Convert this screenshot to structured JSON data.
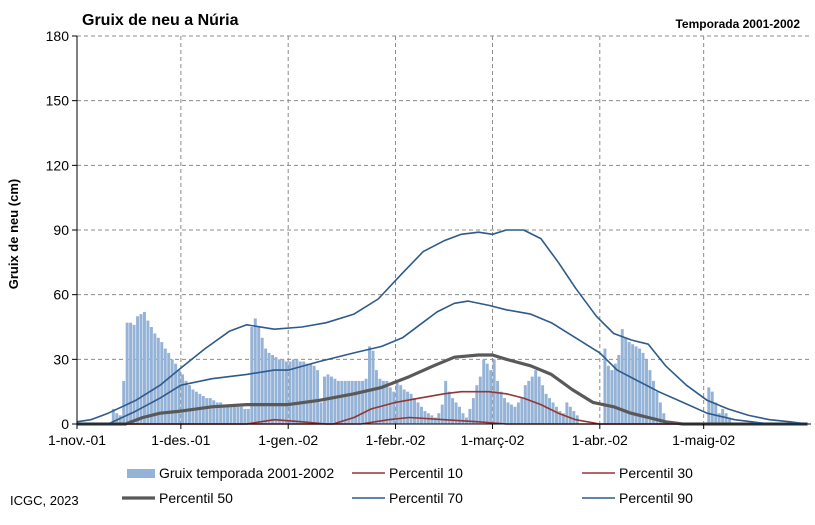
{
  "chart_data": {
    "type": "bar",
    "title": "Gruix de neu a Núria",
    "subtitle": "Temporada 2001-2002",
    "ylabel": "Gruix de neu (cm)",
    "ylim": [
      0,
      180
    ],
    "yticks": [
      0,
      30,
      60,
      90,
      120,
      150,
      180
    ],
    "x_start": "2001-11-01",
    "x_end": "2002-05-31",
    "xticks": [
      {
        "date": "2001-11-01",
        "label": "1-nov.-01"
      },
      {
        "date": "2001-12-01",
        "label": "1-des.-01"
      },
      {
        "date": "2002-01-01",
        "label": "1-gen.-02"
      },
      {
        "date": "2002-02-01",
        "label": "1-febr.-02"
      },
      {
        "date": "2002-03-01",
        "label": "1-març-02"
      },
      {
        "date": "2002-04-01",
        "label": "1-abr.-02"
      },
      {
        "date": "2002-05-01",
        "label": "1-maig-02"
      }
    ],
    "grid": true,
    "legend_position": "bottom",
    "credit": "ICGC, 2023",
    "bar_series": {
      "name": "Gruix temporada 2001-2002",
      "color": "#95b3d7",
      "points": [
        [
          "2001-11-11",
          7
        ],
        [
          "2001-11-12",
          5
        ],
        [
          "2001-11-13",
          4
        ],
        [
          "2001-11-14",
          20
        ],
        [
          "2001-11-15",
          47
        ],
        [
          "2001-11-16",
          47
        ],
        [
          "2001-11-17",
          46
        ],
        [
          "2001-11-18",
          50
        ],
        [
          "2001-11-19",
          51
        ],
        [
          "2001-11-20",
          52
        ],
        [
          "2001-11-21",
          48
        ],
        [
          "2001-11-22",
          45
        ],
        [
          "2001-11-23",
          42
        ],
        [
          "2001-11-24",
          40
        ],
        [
          "2001-11-25",
          38
        ],
        [
          "2001-11-26",
          35
        ],
        [
          "2001-11-27",
          33
        ],
        [
          "2001-11-28",
          30
        ],
        [
          "2001-11-29",
          28
        ],
        [
          "2001-11-30",
          25
        ],
        [
          "2001-12-01",
          23
        ],
        [
          "2001-12-02",
          20
        ],
        [
          "2001-12-03",
          18
        ],
        [
          "2001-12-04",
          16
        ],
        [
          "2001-12-05",
          15
        ],
        [
          "2001-12-06",
          14
        ],
        [
          "2001-12-07",
          13
        ],
        [
          "2001-12-08",
          12
        ],
        [
          "2001-12-09",
          12
        ],
        [
          "2001-12-10",
          11
        ],
        [
          "2001-12-11",
          10
        ],
        [
          "2001-12-12",
          10
        ],
        [
          "2001-12-13",
          9
        ],
        [
          "2001-12-14",
          9
        ],
        [
          "2001-12-15",
          8
        ],
        [
          "2001-12-16",
          8
        ],
        [
          "2001-12-17",
          8
        ],
        [
          "2001-12-18",
          8
        ],
        [
          "2001-12-19",
          7
        ],
        [
          "2001-12-20",
          7
        ],
        [
          "2001-12-21",
          45
        ],
        [
          "2001-12-22",
          49
        ],
        [
          "2001-12-23",
          45
        ],
        [
          "2001-12-24",
          40
        ],
        [
          "2001-12-25",
          35
        ],
        [
          "2001-12-26",
          33
        ],
        [
          "2001-12-27",
          32
        ],
        [
          "2001-12-28",
          31
        ],
        [
          "2001-12-29",
          30
        ],
        [
          "2001-12-30",
          30
        ],
        [
          "2001-12-31",
          29
        ],
        [
          "2002-01-01",
          29
        ],
        [
          "2002-01-02",
          30
        ],
        [
          "2002-01-03",
          30
        ],
        [
          "2002-01-04",
          29
        ],
        [
          "2002-01-05",
          29
        ],
        [
          "2002-01-06",
          28
        ],
        [
          "2002-01-07",
          28
        ],
        [
          "2002-01-08",
          27
        ],
        [
          "2002-01-09",
          25
        ],
        [
          "2002-01-10",
          10
        ],
        [
          "2002-01-11",
          22
        ],
        [
          "2002-01-12",
          23
        ],
        [
          "2002-01-13",
          22
        ],
        [
          "2002-01-14",
          21
        ],
        [
          "2002-01-15",
          20
        ],
        [
          "2002-01-16",
          20
        ],
        [
          "2002-01-17",
          20
        ],
        [
          "2002-01-18",
          20
        ],
        [
          "2002-01-19",
          20
        ],
        [
          "2002-01-20",
          20
        ],
        [
          "2002-01-21",
          20
        ],
        [
          "2002-01-22",
          20
        ],
        [
          "2002-01-23",
          21
        ],
        [
          "2002-01-24",
          36
        ],
        [
          "2002-01-25",
          34
        ],
        [
          "2002-01-26",
          25
        ],
        [
          "2002-01-27",
          21
        ],
        [
          "2002-01-28",
          20
        ],
        [
          "2002-01-29",
          20
        ],
        [
          "2002-01-30",
          17
        ],
        [
          "2002-01-31",
          15
        ],
        [
          "2002-02-01",
          19
        ],
        [
          "2002-02-02",
          18
        ],
        [
          "2002-02-03",
          16
        ],
        [
          "2002-02-04",
          15
        ],
        [
          "2002-02-05",
          14
        ],
        [
          "2002-02-06",
          12
        ],
        [
          "2002-02-07",
          10
        ],
        [
          "2002-02-08",
          8
        ],
        [
          "2002-02-09",
          6
        ],
        [
          "2002-02-10",
          5
        ],
        [
          "2002-02-11",
          4
        ],
        [
          "2002-02-12",
          3
        ],
        [
          "2002-02-13",
          5
        ],
        [
          "2002-02-14",
          9
        ],
        [
          "2002-02-15",
          20
        ],
        [
          "2002-02-16",
          15
        ],
        [
          "2002-02-17",
          12
        ],
        [
          "2002-02-18",
          10
        ],
        [
          "2002-02-19",
          8
        ],
        [
          "2002-02-20",
          5
        ],
        [
          "2002-02-21",
          3
        ],
        [
          "2002-02-22",
          7
        ],
        [
          "2002-02-23",
          12
        ],
        [
          "2002-02-24",
          18
        ],
        [
          "2002-02-25",
          22
        ],
        [
          "2002-02-26",
          30
        ],
        [
          "2002-02-27",
          28
        ],
        [
          "2002-02-28",
          25
        ],
        [
          "2002-03-01",
          30
        ],
        [
          "2002-03-02",
          20
        ],
        [
          "2002-03-03",
          15
        ],
        [
          "2002-03-04",
          12
        ],
        [
          "2002-03-05",
          10
        ],
        [
          "2002-03-06",
          9
        ],
        [
          "2002-03-07",
          8
        ],
        [
          "2002-03-08",
          10
        ],
        [
          "2002-03-09",
          12
        ],
        [
          "2002-03-10",
          18
        ],
        [
          "2002-03-11",
          20
        ],
        [
          "2002-03-12",
          22
        ],
        [
          "2002-03-13",
          25
        ],
        [
          "2002-03-14",
          22
        ],
        [
          "2002-03-15",
          18
        ],
        [
          "2002-03-16",
          14
        ],
        [
          "2002-03-17",
          12
        ],
        [
          "2002-03-18",
          10
        ],
        [
          "2002-03-19",
          8
        ],
        [
          "2002-03-20",
          6
        ],
        [
          "2002-03-21",
          5
        ],
        [
          "2002-03-22",
          10
        ],
        [
          "2002-03-23",
          8
        ],
        [
          "2002-03-24",
          6
        ],
        [
          "2002-03-25",
          4
        ],
        [
          "2002-04-02",
          35
        ],
        [
          "2002-04-03",
          27
        ],
        [
          "2002-04-04",
          25
        ],
        [
          "2002-04-05",
          28
        ],
        [
          "2002-04-06",
          32
        ],
        [
          "2002-04-07",
          44
        ],
        [
          "2002-04-08",
          40
        ],
        [
          "2002-04-09",
          38
        ],
        [
          "2002-04-10",
          37
        ],
        [
          "2002-04-11",
          36
        ],
        [
          "2002-04-12",
          35
        ],
        [
          "2002-04-13",
          33
        ],
        [
          "2002-04-14",
          30
        ],
        [
          "2002-04-15",
          25
        ],
        [
          "2002-04-16",
          20
        ],
        [
          "2002-04-17",
          15
        ],
        [
          "2002-04-18",
          10
        ],
        [
          "2002-04-19",
          5
        ],
        [
          "2002-05-02",
          17
        ],
        [
          "2002-05-03",
          15
        ],
        [
          "2002-05-04",
          10
        ],
        [
          "2002-05-05",
          5
        ],
        [
          "2002-05-06",
          7
        ],
        [
          "2002-05-07",
          5
        ],
        [
          "2002-05-08",
          3
        ]
      ]
    },
    "line_series": [
      {
        "name": "Percentil 10",
        "color": "#943634",
        "width": 1.6,
        "points": [
          [
            "2001-11-01",
            0
          ],
          [
            "2001-12-20",
            0
          ],
          [
            "2001-12-28",
            2
          ],
          [
            "2002-01-05",
            1
          ],
          [
            "2002-01-12",
            0
          ],
          [
            "2002-01-22",
            0
          ],
          [
            "2002-01-30",
            2
          ],
          [
            "2002-02-05",
            3
          ],
          [
            "2002-02-15",
            2
          ],
          [
            "2002-02-25",
            1
          ],
          [
            "2002-03-05",
            0
          ],
          [
            "2002-05-31",
            0
          ]
        ]
      },
      {
        "name": "Percentil 30",
        "color": "#943634",
        "width": 1.6,
        "points": [
          [
            "2001-11-01",
            0
          ],
          [
            "2001-12-20",
            0
          ],
          [
            "2002-01-14",
            0
          ],
          [
            "2002-01-20",
            3
          ],
          [
            "2002-01-25",
            7
          ],
          [
            "2002-02-01",
            10
          ],
          [
            "2002-02-08",
            12
          ],
          [
            "2002-02-15",
            14
          ],
          [
            "2002-02-20",
            15
          ],
          [
            "2002-02-28",
            15
          ],
          [
            "2002-03-05",
            14
          ],
          [
            "2002-03-10",
            12
          ],
          [
            "2002-03-15",
            9
          ],
          [
            "2002-03-20",
            5
          ],
          [
            "2002-03-25",
            2
          ],
          [
            "2002-04-01",
            0
          ],
          [
            "2002-05-31",
            0
          ]
        ]
      },
      {
        "name": "Percentil 50",
        "color": "#595959",
        "width": 3.2,
        "points": [
          [
            "2001-11-01",
            0
          ],
          [
            "2001-11-15",
            0
          ],
          [
            "2001-11-20",
            3
          ],
          [
            "2001-11-25",
            5
          ],
          [
            "2001-12-01",
            6
          ],
          [
            "2001-12-10",
            8
          ],
          [
            "2001-12-20",
            9
          ],
          [
            "2002-01-01",
            9
          ],
          [
            "2002-01-10",
            11
          ],
          [
            "2002-01-20",
            14
          ],
          [
            "2002-01-28",
            17
          ],
          [
            "2002-02-05",
            22
          ],
          [
            "2002-02-12",
            27
          ],
          [
            "2002-02-18",
            31
          ],
          [
            "2002-02-25",
            32
          ],
          [
            "2002-03-01",
            32
          ],
          [
            "2002-03-05",
            30
          ],
          [
            "2002-03-12",
            27
          ],
          [
            "2002-03-18",
            23
          ],
          [
            "2002-03-24",
            16
          ],
          [
            "2002-03-30",
            10
          ],
          [
            "2002-04-05",
            8
          ],
          [
            "2002-04-10",
            5
          ],
          [
            "2002-04-15",
            3
          ],
          [
            "2002-04-20",
            1
          ],
          [
            "2002-04-25",
            0
          ],
          [
            "2002-05-31",
            0
          ]
        ]
      },
      {
        "name": "Percentil 70",
        "color": "#2e5a8c",
        "width": 1.6,
        "points": [
          [
            "2001-11-01",
            0
          ],
          [
            "2001-11-10",
            0
          ],
          [
            "2001-11-18",
            6
          ],
          [
            "2001-11-25",
            12
          ],
          [
            "2001-12-01",
            18
          ],
          [
            "2001-12-10",
            21
          ],
          [
            "2001-12-20",
            23
          ],
          [
            "2001-12-28",
            25
          ],
          [
            "2002-01-01",
            25
          ],
          [
            "2002-01-10",
            29
          ],
          [
            "2002-01-20",
            33
          ],
          [
            "2002-01-28",
            36
          ],
          [
            "2002-02-03",
            40
          ],
          [
            "2002-02-08",
            46
          ],
          [
            "2002-02-13",
            52
          ],
          [
            "2002-02-18",
            56
          ],
          [
            "2002-02-22",
            57
          ],
          [
            "2002-02-28",
            55
          ],
          [
            "2002-03-05",
            53
          ],
          [
            "2002-03-12",
            51
          ],
          [
            "2002-03-18",
            47
          ],
          [
            "2002-03-25",
            40
          ],
          [
            "2002-04-01",
            33
          ],
          [
            "2002-04-06",
            25
          ],
          [
            "2002-04-12",
            20
          ],
          [
            "2002-04-18",
            15
          ],
          [
            "2002-04-25",
            10
          ],
          [
            "2002-05-02",
            5
          ],
          [
            "2002-05-10",
            2
          ],
          [
            "2002-05-20",
            0
          ],
          [
            "2002-05-31",
            0
          ]
        ]
      },
      {
        "name": "Percentil 90",
        "color": "#2e5a8c",
        "width": 1.6,
        "points": [
          [
            "2001-11-01",
            1
          ],
          [
            "2001-11-05",
            2
          ],
          [
            "2001-11-10",
            5
          ],
          [
            "2001-11-18",
            11
          ],
          [
            "2001-11-25",
            18
          ],
          [
            "2001-12-01",
            26
          ],
          [
            "2001-12-08",
            35
          ],
          [
            "2001-12-15",
            43
          ],
          [
            "2001-12-20",
            46
          ],
          [
            "2001-12-28",
            44
          ],
          [
            "2002-01-05",
            45
          ],
          [
            "2002-01-12",
            47
          ],
          [
            "2002-01-20",
            51
          ],
          [
            "2002-01-27",
            58
          ],
          [
            "2002-02-03",
            70
          ],
          [
            "2002-02-09",
            80
          ],
          [
            "2002-02-15",
            85
          ],
          [
            "2002-02-20",
            88
          ],
          [
            "2002-02-25",
            89
          ],
          [
            "2002-03-01",
            88
          ],
          [
            "2002-03-05",
            90
          ],
          [
            "2002-03-10",
            90
          ],
          [
            "2002-03-15",
            86
          ],
          [
            "2002-03-20",
            75
          ],
          [
            "2002-03-25",
            63
          ],
          [
            "2002-03-31",
            50
          ],
          [
            "2002-04-05",
            42
          ],
          [
            "2002-04-10",
            39
          ],
          [
            "2002-04-15",
            37
          ],
          [
            "2002-04-20",
            27
          ],
          [
            "2002-04-26",
            18
          ],
          [
            "2002-05-02",
            11
          ],
          [
            "2002-05-08",
            7
          ],
          [
            "2002-05-14",
            4
          ],
          [
            "2002-05-20",
            2
          ],
          [
            "2002-05-26",
            1
          ],
          [
            "2002-05-31",
            0
          ]
        ]
      }
    ]
  }
}
